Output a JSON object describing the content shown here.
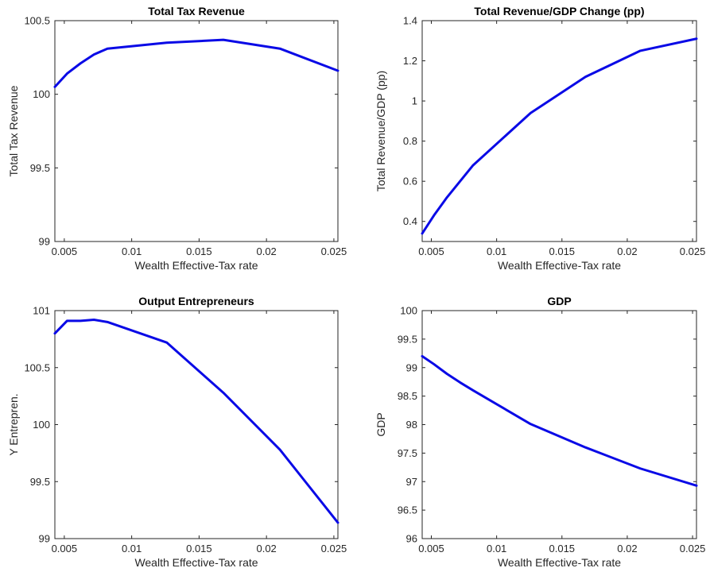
{
  "chart_data": [
    {
      "type": "line",
      "title": "Total Tax Revenue",
      "xlabel": "Wealth Effective-Tax rate",
      "ylabel": "Total Tax Revenue",
      "xlim": [
        0.0043,
        0.0253
      ],
      "ylim": [
        99,
        100.5
      ],
      "xticks": [
        0.005,
        0.01,
        0.015,
        0.02,
        0.025
      ],
      "xtick_labels": [
        "0.005",
        "0.01",
        "0.015",
        "0.02",
        "0.025"
      ],
      "yticks": [
        99,
        99.5,
        100,
        100.5
      ],
      "ytick_labels": [
        "99",
        "99.5",
        "100",
        "100.5"
      ],
      "grid": false,
      "color": "#0a0ae6",
      "series": [
        {
          "x": [
            0.0043,
            0.0052,
            0.0062,
            0.0072,
            0.0082,
            0.0126,
            0.0168,
            0.021,
            0.0253
          ],
          "y": [
            100.05,
            100.14,
            100.21,
            100.27,
            100.31,
            100.35,
            100.37,
            100.31,
            100.16
          ]
        }
      ]
    },
    {
      "type": "line",
      "title": "Total Revenue/GDP Change (pp)",
      "xlabel": "Wealth Effective-Tax rate",
      "ylabel": "Total Revenue/GDP (pp)",
      "xlim": [
        0.0043,
        0.0253
      ],
      "ylim": [
        0.3,
        1.4
      ],
      "xticks": [
        0.005,
        0.01,
        0.015,
        0.02,
        0.025
      ],
      "xtick_labels": [
        "0.005",
        "0.01",
        "0.015",
        "0.02",
        "0.025"
      ],
      "yticks": [
        0.4,
        0.6,
        0.8,
        1,
        1.2,
        1.4
      ],
      "ytick_labels": [
        "0.4",
        "0.6",
        "0.8",
        "1",
        "1.2",
        "1.4"
      ],
      "grid": false,
      "color": "#0a0ae6",
      "series": [
        {
          "x": [
            0.0043,
            0.0052,
            0.0062,
            0.0072,
            0.0082,
            0.0126,
            0.0168,
            0.021,
            0.0253
          ],
          "y": [
            0.34,
            0.43,
            0.52,
            0.6,
            0.68,
            0.94,
            1.12,
            1.25,
            1.31
          ]
        }
      ]
    },
    {
      "type": "line",
      "title": "Output Entrepreneurs",
      "xlabel": "Wealth Effective-Tax rate",
      "ylabel": "Y Entrepren.",
      "xlim": [
        0.0043,
        0.0253
      ],
      "ylim": [
        99,
        101
      ],
      "xticks": [
        0.005,
        0.01,
        0.015,
        0.02,
        0.025
      ],
      "xtick_labels": [
        "0.005",
        "0.01",
        "0.015",
        "0.02",
        "0.025"
      ],
      "yticks": [
        99,
        99.5,
        100,
        100.5,
        101
      ],
      "ytick_labels": [
        "99",
        "99.5",
        "100",
        "100.5",
        "101"
      ],
      "grid": false,
      "color": "#0a0ae6",
      "series": [
        {
          "x": [
            0.0043,
            0.0052,
            0.0062,
            0.0072,
            0.0082,
            0.0126,
            0.0168,
            0.021,
            0.0253
          ],
          "y": [
            100.8,
            100.91,
            100.91,
            100.92,
            100.9,
            100.72,
            100.28,
            99.78,
            99.14
          ]
        }
      ]
    },
    {
      "type": "line",
      "title": "GDP",
      "xlabel": "Wealth Effective-Tax rate",
      "ylabel": "GDP",
      "xlim": [
        0.0043,
        0.0253
      ],
      "ylim": [
        96,
        100
      ],
      "xticks": [
        0.005,
        0.01,
        0.015,
        0.02,
        0.025
      ],
      "xtick_labels": [
        "0.005",
        "0.01",
        "0.015",
        "0.02",
        "0.025"
      ],
      "yticks": [
        96,
        96.5,
        97,
        97.5,
        98,
        98.5,
        99,
        99.5,
        100
      ],
      "ytick_labels": [
        "96",
        "96.5",
        "97",
        "97.5",
        "98",
        "98.5",
        "99",
        "99.5",
        "100"
      ],
      "grid": false,
      "color": "#0a0ae6",
      "series": [
        {
          "x": [
            0.0043,
            0.0052,
            0.0062,
            0.0072,
            0.0082,
            0.0126,
            0.0168,
            0.021,
            0.0253
          ],
          "y": [
            99.2,
            99.06,
            98.89,
            98.74,
            98.6,
            98.01,
            97.6,
            97.23,
            96.93
          ]
        }
      ]
    }
  ]
}
